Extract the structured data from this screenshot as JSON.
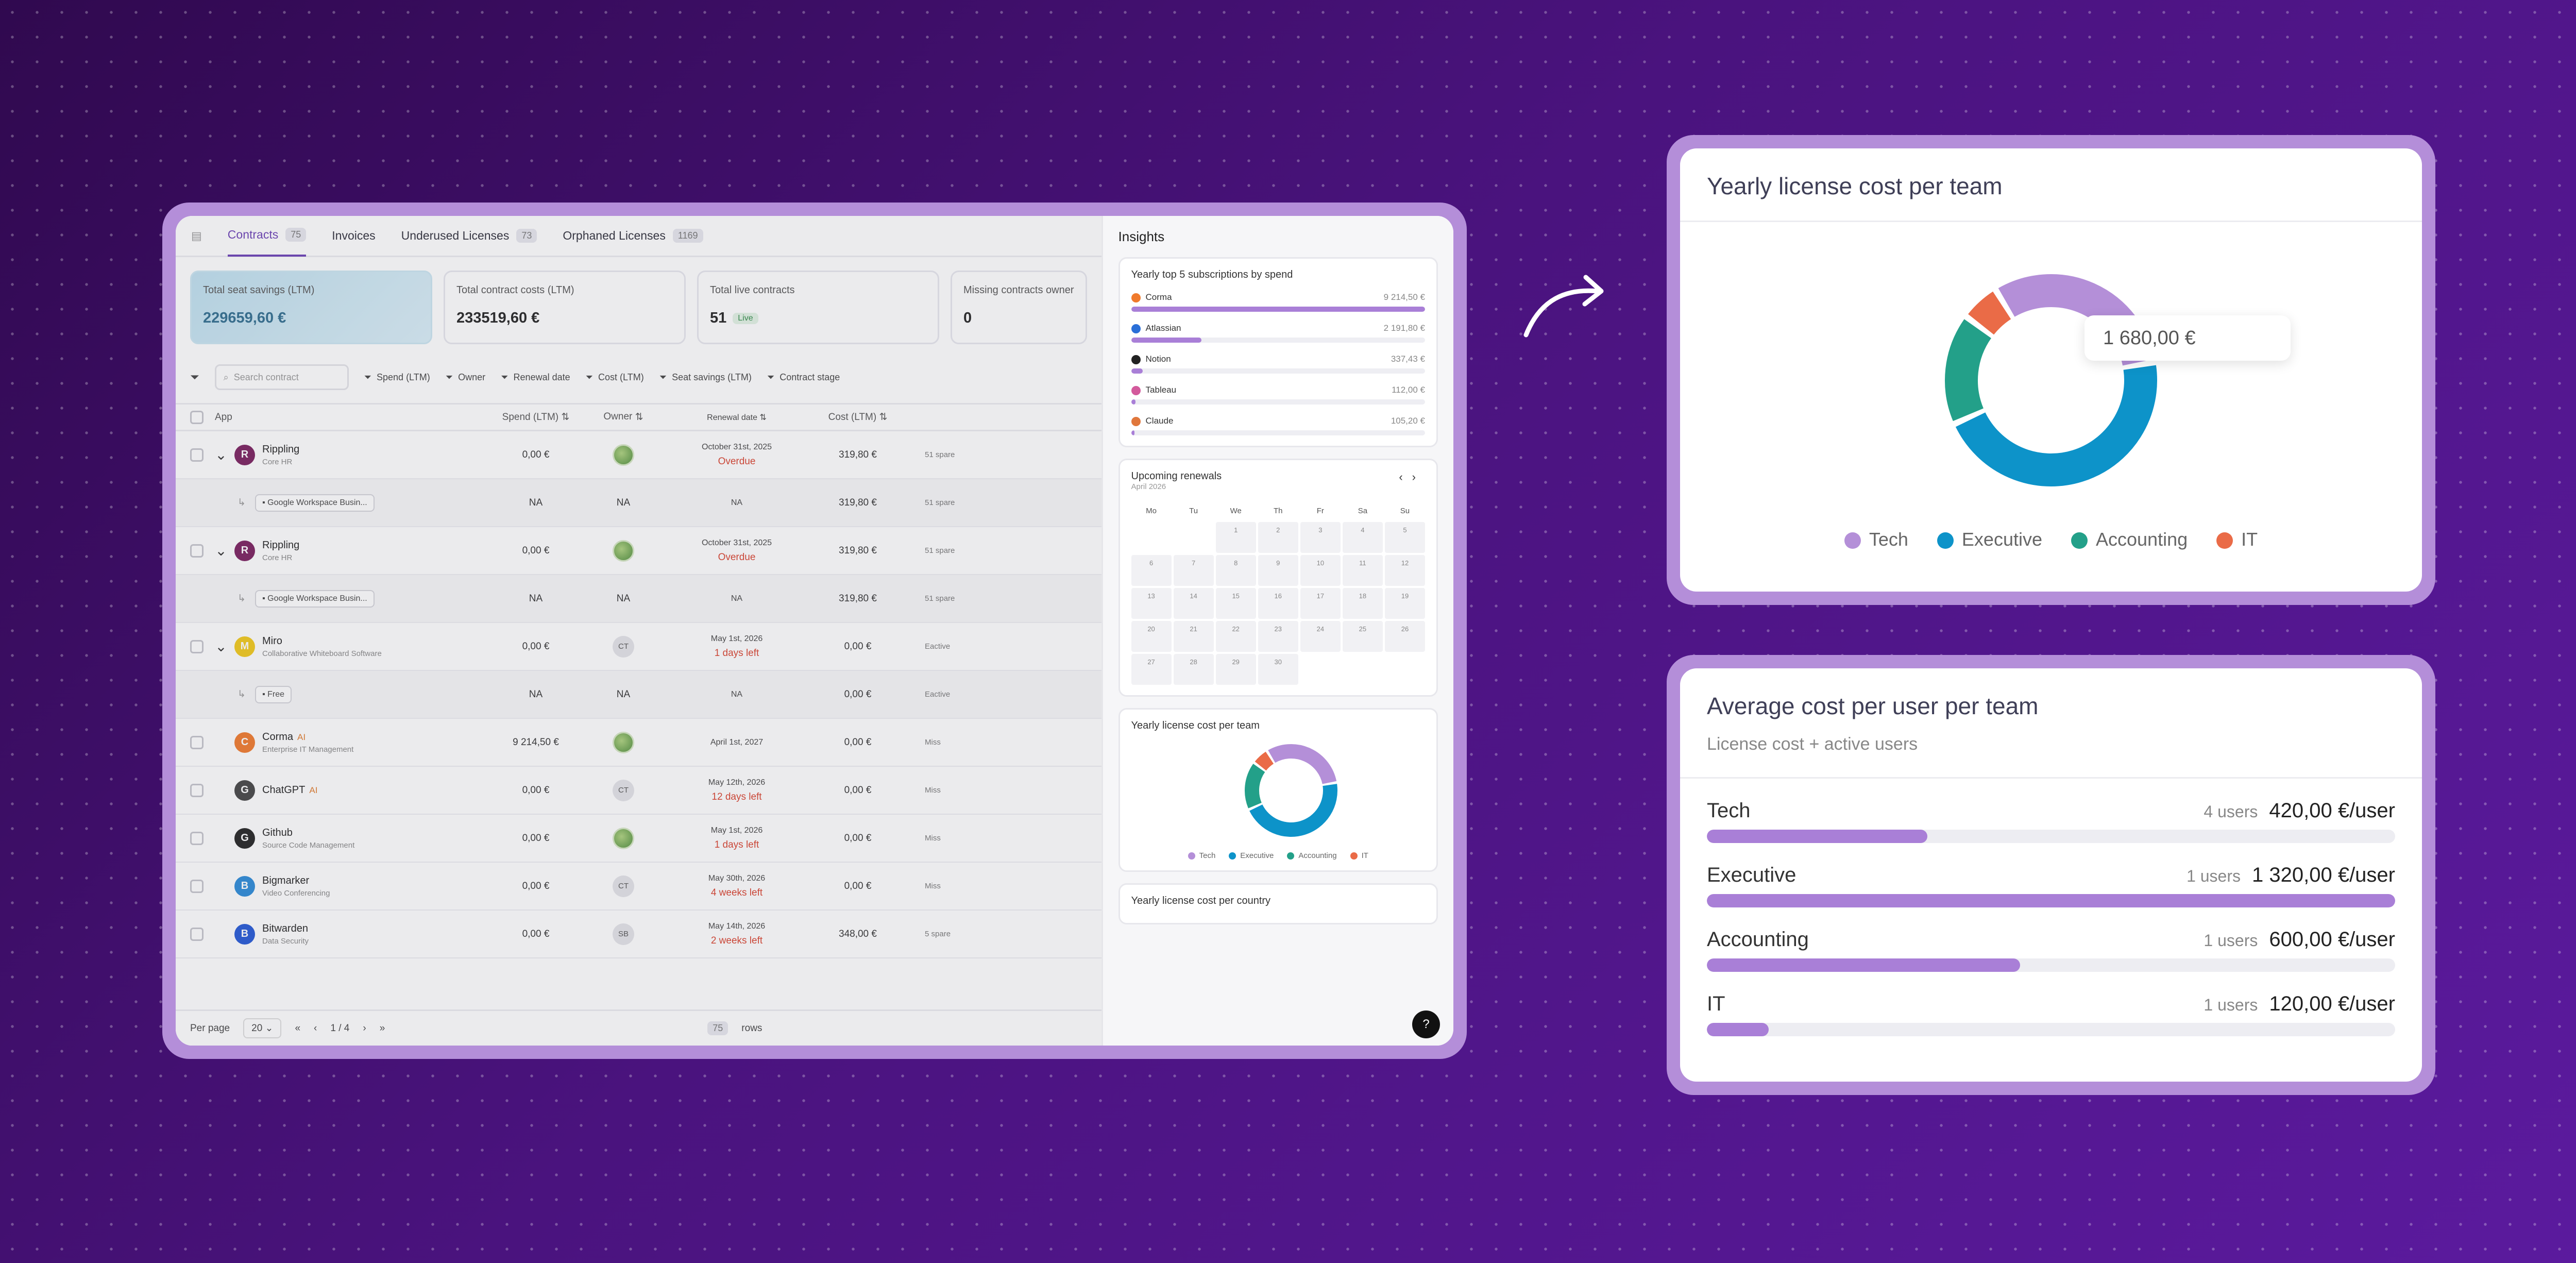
{
  "app": {
    "tabs": [
      {
        "label": "Contracts",
        "count": "75"
      },
      {
        "label": "Invoices"
      },
      {
        "label": "Underused Licenses",
        "count": "73"
      },
      {
        "label": "Orphaned Licenses",
        "count": "1169"
      }
    ],
    "stats": [
      {
        "label": "Total seat savings (LTM)",
        "value": "229659,60 €"
      },
      {
        "label": "Total contract costs (LTM)",
        "value": "233519,60 €"
      },
      {
        "label": "Total live contracts",
        "value": "51",
        "badge": "Live"
      },
      {
        "label": "Missing contracts owner",
        "value": "0"
      }
    ],
    "search_placeholder": "Search contract",
    "filters": [
      "Spend (LTM)",
      "Owner",
      "Renewal date",
      "Cost (LTM)",
      "Seat savings (LTM)",
      "Contract stage"
    ],
    "columns": {
      "app": "App",
      "spend": "Spend (LTM)",
      "owner": "Owner",
      "renewal": "Renewal date",
      "cost": "Cost (LTM)"
    },
    "rows": [
      {
        "type": "main",
        "name": "Rippling",
        "sub": "Core HR",
        "spend": "0,00 €",
        "owner": "",
        "renewal": "October 31st, 2025",
        "status": "Overdue",
        "cost": "319,80 €",
        "extra": "51 spare",
        "logo_color": "#7a1f5e",
        "logo_letter": "R"
      },
      {
        "type": "sub",
        "tag": "Google Workspace Busin...",
        "spend": "NA",
        "owner": "NA",
        "renewal": "NA",
        "cost": "319,80 €",
        "extra": "51 spare"
      },
      {
        "type": "main",
        "name": "Rippling",
        "sub": "Core HR",
        "spend": "0,00 €",
        "owner": "",
        "renewal": "October 31st, 2025",
        "status": "Overdue",
        "cost": "319,80 €",
        "extra": "51 spare",
        "logo_color": "#7a1f5e",
        "logo_letter": "R"
      },
      {
        "type": "sub",
        "tag": "Google Workspace Busin...",
        "spend": "NA",
        "owner": "NA",
        "renewal": "NA",
        "cost": "319,80 €",
        "extra": "51 spare"
      },
      {
        "type": "main",
        "name": "Miro",
        "sub": "Collaborative Whiteboard Software",
        "spend": "0,00 €",
        "owner": "CT",
        "renewal": "May 1st, 2026",
        "status": "1 days left",
        "cost": "0,00 €",
        "extra": "Eactive",
        "logo_color": "#f2c919",
        "logo_letter": "M"
      },
      {
        "type": "sub",
        "tag": "Free",
        "spend": "NA",
        "owner": "NA",
        "renewal": "NA",
        "cost": "0,00 €",
        "extra": "Eactive"
      },
      {
        "type": "main",
        "name": "Corma",
        "ai": "AI",
        "sub": "Enterprise IT Management",
        "spend": "9 214,50 €",
        "owner": "",
        "renewal": "April 1st, 2027",
        "status": "",
        "cost": "0,00 €",
        "extra": "Miss",
        "logo_color": "#f07a2c",
        "logo_letter": "C"
      },
      {
        "type": "main",
        "name": "ChatGPT",
        "ai": "AI",
        "sub": "",
        "spend": "0,00 €",
        "owner": "CT",
        "renewal": "May 12th, 2026",
        "status": "12 days left",
        "cost": "0,00 €",
        "extra": "Miss",
        "logo_color": "#444444",
        "logo_letter": "G"
      },
      {
        "type": "main",
        "name": "Github",
        "sub": "Source Code Management",
        "spend": "0,00 €",
        "owner": "",
        "renewal": "May 1st, 2026",
        "status": "1 days left",
        "cost": "0,00 €",
        "extra": "Miss",
        "logo_color": "#222222",
        "logo_letter": "G"
      },
      {
        "type": "main",
        "name": "Bigmarker",
        "sub": "Video Conferencing",
        "spend": "0,00 €",
        "owner": "CT",
        "renewal": "May 30th, 2026",
        "status": "4 weeks left",
        "cost": "0,00 €",
        "extra": "Miss",
        "logo_color": "#2a8ad8",
        "logo_letter": "B"
      },
      {
        "type": "main",
        "name": "Bitwarden",
        "sub": "Data Security",
        "spend": "0,00 €",
        "owner": "SB",
        "renewal": "May 14th, 2026",
        "status": "2 weeks left",
        "cost": "348,00 €",
        "extra": "5 spare",
        "logo_color": "#2458d6",
        "logo_letter": "B"
      }
    ],
    "pager": {
      "per_page_label": "Per page",
      "per_page": "20",
      "page": "1 / 4",
      "rows_count": "75",
      "rows_label": "rows"
    }
  },
  "insights": {
    "title": "Insights",
    "top5": {
      "title": "Yearly top 5 subscriptions by spend",
      "items": [
        {
          "name": "Corma",
          "value": "9 214,50 €",
          "fraction": 1.0,
          "color": "#f07a2c"
        },
        {
          "name": "Atlassian",
          "value": "2 191,80 €",
          "fraction": 0.24,
          "color": "#2a6fd8"
        },
        {
          "name": "Notion",
          "value": "337,43 €",
          "fraction": 0.04,
          "color": "#222222"
        },
        {
          "name": "Tableau",
          "value": "112,00 €",
          "fraction": 0.015,
          "color": "#d35a9c"
        },
        {
          "name": "Claude",
          "value": "105,20 €",
          "fraction": 0.012,
          "color": "#e0773c"
        }
      ]
    },
    "renewals": {
      "title": "Upcoming renewals",
      "month": "April 2026",
      "nav_prev": "‹",
      "nav_next": "›",
      "days_of_week": [
        "Mo",
        "Tu",
        "We",
        "Th",
        "Fr",
        "Sa",
        "Su"
      ],
      "leading_blanks": 2,
      "days": [
        "1",
        "2",
        "3",
        "4",
        "5",
        "6",
        "7",
        "8",
        "9",
        "10",
        "11",
        "12",
        "13",
        "14",
        "15",
        "16",
        "17",
        "18",
        "19",
        "20",
        "21",
        "22",
        "23",
        "24",
        "25",
        "26",
        "27",
        "28",
        "29",
        "30"
      ]
    },
    "small_donut_title": "Yearly license cost per team",
    "country_title": "Yearly license cost per country",
    "help": "?"
  },
  "team_cost": {
    "title": "Yearly license cost per team",
    "tooltip": "1 680,00 €",
    "segments": [
      {
        "name": "Tech",
        "fraction": 0.31,
        "color": "#b48fd8"
      },
      {
        "name": "Executive",
        "fraction": 0.46,
        "color": "#0d93c9"
      },
      {
        "name": "Accounting",
        "fraction": 0.17,
        "color": "#23a089"
      },
      {
        "name": "IT",
        "fraction": 0.06,
        "color": "#ea6b47"
      }
    ]
  },
  "avg_cost": {
    "title": "Average cost per user per team",
    "subtitle": "License cost + active users",
    "teams": [
      {
        "name": "Tech",
        "users": "4 users",
        "value": "420,00 €/user",
        "fraction": 0.32
      },
      {
        "name": "Executive",
        "users": "1 users",
        "value": "1 320,00 €/user",
        "fraction": 1.0
      },
      {
        "name": "Accounting",
        "users": "1 users",
        "value": "600,00 €/user",
        "fraction": 0.455
      },
      {
        "name": "IT",
        "users": "1 users",
        "value": "120,00 €/user",
        "fraction": 0.09
      }
    ]
  }
}
